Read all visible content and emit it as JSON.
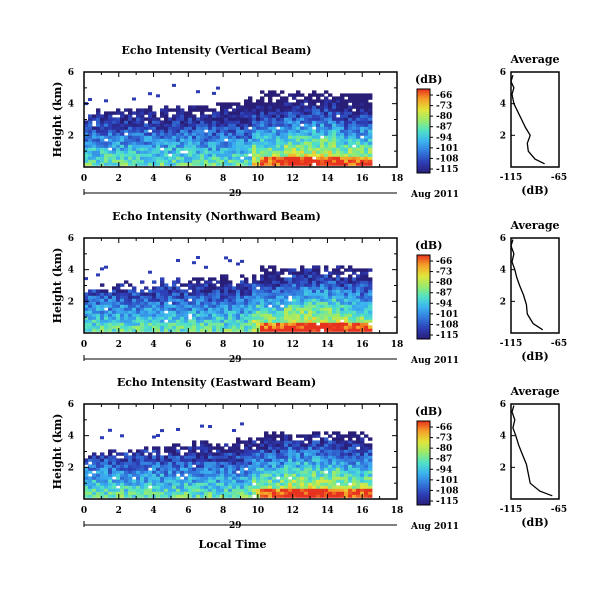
{
  "figure": {
    "xlabel": "Local Time",
    "date_label": "Aug 2011",
    "date_tick": "29",
    "colorbar_unit": "(dB)",
    "avg_title": "Average",
    "avg_xlabel": "(dB)"
  },
  "chart_data": [
    {
      "type": "heatmap",
      "title": "Echo Intensity (Vertical Beam)",
      "ylabel": "Height (km)",
      "x_ticks": [
        0,
        2,
        4,
        6,
        8,
        10,
        12,
        14,
        16,
        18
      ],
      "y_ticks": [
        2,
        4,
        6
      ],
      "xlim": [
        0,
        18
      ],
      "ylim": [
        0,
        6
      ],
      "colorbar_ticks": [
        -66,
        -73,
        -80,
        -87,
        -94,
        -101,
        -108,
        -115
      ],
      "colorbar_range": [
        -115,
        -66
      ],
      "echo_top_km": 4.5,
      "average_profile": {
        "title": "Average",
        "xlabel": "(dB)",
        "xlim": [
          -115,
          -65
        ],
        "x_ticks": [
          -115,
          -65
        ],
        "y_ticks": [
          2,
          4,
          6
        ],
        "points": [
          [
            -80,
            0.2
          ],
          [
            -90,
            0.5
          ],
          [
            -97,
            1.0
          ],
          [
            -98,
            1.5
          ],
          [
            -95,
            2.0
          ],
          [
            -100,
            2.5
          ],
          [
            -104,
            3.0
          ],
          [
            -108,
            3.5
          ],
          [
            -112,
            4.0
          ],
          [
            -114,
            4.6
          ],
          [
            -112,
            5.0
          ],
          [
            -115,
            5.4
          ],
          [
            -113,
            5.8
          ]
        ]
      }
    },
    {
      "type": "heatmap",
      "title": "Echo Intensity (Northward Beam)",
      "ylabel": "Height (km)",
      "x_ticks": [
        0,
        2,
        4,
        6,
        8,
        10,
        12,
        14,
        16,
        18
      ],
      "y_ticks": [
        2,
        4,
        6
      ],
      "xlim": [
        0,
        18
      ],
      "ylim": [
        0,
        6
      ],
      "colorbar_ticks": [
        -66,
        -73,
        -80,
        -87,
        -94,
        -101,
        -108,
        -115
      ],
      "colorbar_range": [
        -115,
        -66
      ],
      "echo_top_km": 4.0,
      "average_profile": {
        "title": "Average",
        "xlabel": "(dB)",
        "xlim": [
          -115,
          -65
        ],
        "x_ticks": [
          -115,
          -65
        ],
        "y_ticks": [
          2,
          4,
          6
        ],
        "points": [
          [
            -82,
            0.2
          ],
          [
            -92,
            0.6
          ],
          [
            -98,
            1.2
          ],
          [
            -99,
            1.8
          ],
          [
            -102,
            2.4
          ],
          [
            -106,
            3.0
          ],
          [
            -109,
            3.5
          ],
          [
            -111,
            4.0
          ],
          [
            -114,
            4.5
          ],
          [
            -112,
            5.0
          ],
          [
            -115,
            5.5
          ],
          [
            -113,
            5.9
          ]
        ]
      }
    },
    {
      "type": "heatmap",
      "title": "Echo Intensity (Eastward Beam)",
      "ylabel": "Height (km)",
      "x_ticks": [
        0,
        2,
        4,
        6,
        8,
        10,
        12,
        14,
        16,
        18
      ],
      "y_ticks": [
        2,
        4,
        6
      ],
      "xlim": [
        0,
        18
      ],
      "ylim": [
        0,
        6
      ],
      "colorbar_ticks": [
        -66,
        -73,
        -80,
        -87,
        -94,
        -101,
        -108,
        -115
      ],
      "colorbar_range": [
        -115,
        -66
      ],
      "echo_top_km": 4.0,
      "average_profile": {
        "title": "Average",
        "xlabel": "(dB)",
        "xlim": [
          -115,
          -65
        ],
        "x_ticks": [
          -115,
          -65
        ],
        "y_ticks": [
          2,
          4,
          6
        ],
        "points": [
          [
            -72,
            0.2
          ],
          [
            -85,
            0.5
          ],
          [
            -95,
            1.0
          ],
          [
            -97,
            1.6
          ],
          [
            -99,
            2.2
          ],
          [
            -103,
            2.8
          ],
          [
            -107,
            3.4
          ],
          [
            -110,
            4.0
          ],
          [
            -113,
            4.5
          ],
          [
            -111,
            5.0
          ],
          [
            -114,
            5.5
          ],
          [
            -112,
            5.9
          ]
        ]
      }
    }
  ]
}
